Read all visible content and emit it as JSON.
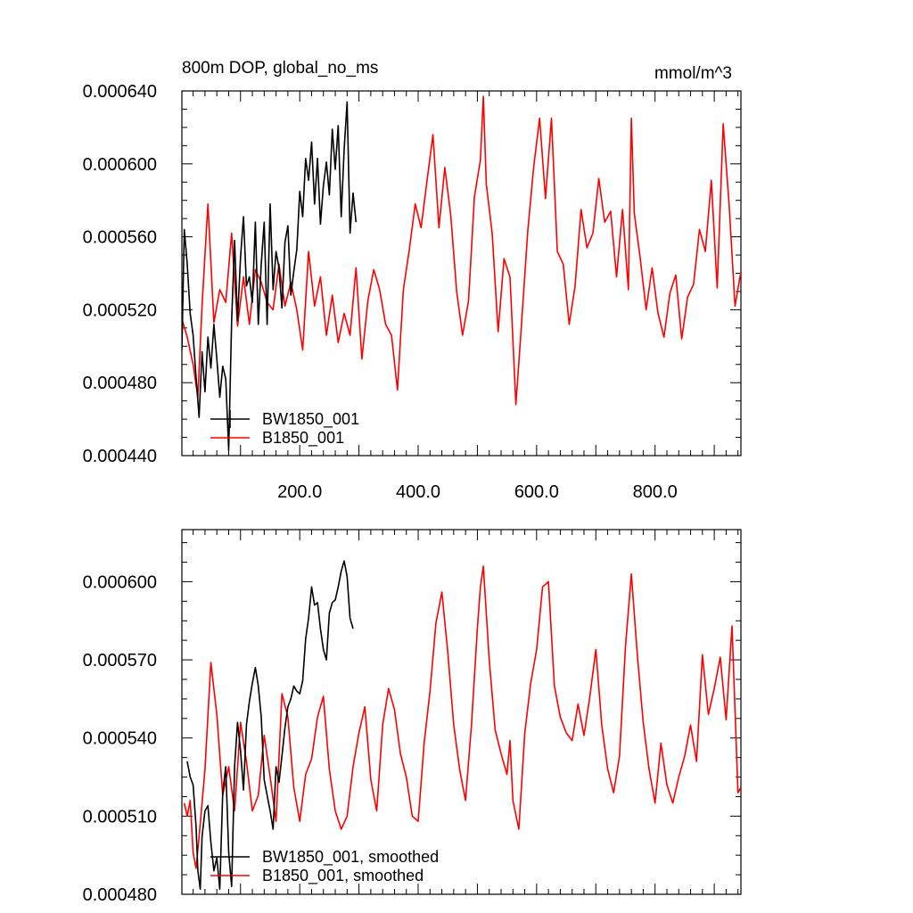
{
  "chart_data": [
    {
      "type": "line",
      "title_left": "800m DOP, global_no_ms",
      "title_right": "mmol/m^3",
      "xlim": [
        1,
        945
      ],
      "ylim": [
        0.00044,
        0.00064
      ],
      "grid": false,
      "legend_position": "bottom-left",
      "xticks": [
        200,
        400,
        600,
        800
      ],
      "xtick_labels": [
        "200.0",
        "400.0",
        "600.0",
        "800.0"
      ],
      "yticks": [
        0.00044,
        0.00048,
        0.00052,
        0.00056,
        0.0006,
        0.00064
      ],
      "ytick_labels": [
        "0.000440",
        "0.000480",
        "0.000520",
        "0.000560",
        "0.000600",
        "0.000640"
      ],
      "series": [
        {
          "name": "BW1850_001",
          "color": "#000000",
          "x": [
            1,
            5,
            10,
            15,
            20,
            25,
            30,
            35,
            40,
            45,
            50,
            55,
            60,
            65,
            70,
            75,
            80,
            85,
            90,
            95,
            100,
            105,
            110,
            115,
            120,
            125,
            130,
            135,
            140,
            145,
            150,
            155,
            160,
            165,
            170,
            175,
            180,
            185,
            190,
            195,
            200,
            205,
            210,
            215,
            220,
            225,
            230,
            235,
            240,
            245,
            250,
            255,
            260,
            265,
            270,
            275,
            280,
            285,
            290,
            295
          ],
          "y": [
            0.000498,
            0.000564,
            0.000545,
            0.000518,
            0.000506,
            0.000483,
            0.000461,
            0.000497,
            0.000475,
            0.000505,
            0.000488,
            0.000512,
            0.000493,
            0.000472,
            0.000489,
            0.000482,
            0.000443,
            0.000514,
            0.000558,
            0.000514,
            0.000549,
            0.000571,
            0.000533,
            0.000538,
            0.000524,
            0.000568,
            0.000512,
            0.000545,
            0.000568,
            0.000512,
            0.000578,
            0.000531,
            0.000552,
            0.000543,
            0.000521,
            0.000557,
            0.000566,
            0.000528,
            0.000541,
            0.000553,
            0.000585,
            0.000571,
            0.000603,
            0.000591,
            0.000612,
            0.000578,
            0.000603,
            0.000567,
            0.000588,
            0.000601,
            0.000583,
            0.000619,
            0.000597,
            0.000621,
            0.000571,
            0.000608,
            0.000634,
            0.000562,
            0.000584,
            0.000568
          ]
        },
        {
          "name": "B1850_001",
          "color": "#ff0000",
          "x": [
            1,
            10,
            20,
            28,
            35,
            45,
            55,
            65,
            75,
            85,
            95,
            105,
            115,
            125,
            135,
            145,
            155,
            165,
            175,
            185,
            195,
            205,
            215,
            225,
            235,
            245,
            255,
            265,
            275,
            285,
            295,
            305,
            315,
            325,
            335,
            345,
            355,
            365,
            375,
            385,
            395,
            405,
            415,
            425,
            435,
            445,
            455,
            465,
            475,
            485,
            495,
            505,
            510,
            515,
            525,
            535,
            545,
            555,
            565,
            573,
            585,
            595,
            605,
            615,
            625,
            635,
            645,
            655,
            665,
            675,
            685,
            695,
            705,
            715,
            725,
            735,
            745,
            755,
            760,
            765,
            775,
            785,
            795,
            805,
            815,
            825,
            835,
            845,
            855,
            865,
            875,
            885,
            895,
            905,
            915,
            925,
            935,
            945
          ],
          "y": [
            0.000515,
            0.000505,
            0.00049,
            0.000472,
            0.000522,
            0.000578,
            0.000513,
            0.000531,
            0.000524,
            0.000562,
            0.000511,
            0.000538,
            0.000512,
            0.000542,
            0.000535,
            0.000524,
            0.00052,
            0.000545,
            0.000522,
            0.000535,
            0.00052,
            0.000498,
            0.000552,
            0.000522,
            0.000538,
            0.000506,
            0.000528,
            0.000502,
            0.000518,
            0.000506,
            0.000543,
            0.000493,
            0.000525,
            0.000542,
            0.000531,
            0.000512,
            0.000506,
            0.000476,
            0.000531,
            0.000553,
            0.000578,
            0.000565,
            0.000591,
            0.000616,
            0.000565,
            0.000598,
            0.000572,
            0.00053,
            0.000506,
            0.000525,
            0.000582,
            0.000602,
            0.000637,
            0.000589,
            0.000562,
            0.000508,
            0.000548,
            0.000538,
            0.000468,
            0.000505,
            0.000563,
            0.000598,
            0.000625,
            0.000581,
            0.000625,
            0.000552,
            0.000545,
            0.000512,
            0.000533,
            0.000575,
            0.000554,
            0.000562,
            0.000592,
            0.000568,
            0.000574,
            0.000538,
            0.000575,
            0.000531,
            0.000625,
            0.000573,
            0.000548,
            0.00052,
            0.000543,
            0.000518,
            0.000505,
            0.000529,
            0.000539,
            0.000504,
            0.000527,
            0.000534,
            0.000564,
            0.000552,
            0.000591,
            0.000532,
            0.000622,
            0.000578,
            0.000522,
            0.000541
          ]
        }
      ]
    },
    {
      "type": "line",
      "xlim": [
        1,
        945
      ],
      "ylim": [
        0.00048,
        0.00062
      ],
      "grid": false,
      "legend_position": "bottom-left",
      "xticks": [
        200,
        400,
        600,
        800
      ],
      "yticks": [
        0.00048,
        0.00051,
        0.00054,
        0.00057,
        0.0006
      ],
      "ytick_labels": [
        "0.000480",
        "0.000510",
        "0.000540",
        "0.000570",
        "0.000600"
      ],
      "series": [
        {
          "name": "BW1850_001, smoothed",
          "color": "#000000",
          "x": [
            10,
            15,
            20,
            25,
            28,
            32,
            35,
            40,
            45,
            50,
            55,
            60,
            65,
            70,
            75,
            80,
            85,
            90,
            95,
            100,
            105,
            110,
            115,
            120,
            125,
            130,
            135,
            140,
            145,
            150,
            155,
            160,
            165,
            170,
            175,
            180,
            185,
            190,
            195,
            200,
            205,
            210,
            215,
            220,
            225,
            230,
            235,
            240,
            245,
            250,
            255,
            260,
            265,
            270,
            275,
            280,
            285,
            290
          ],
          "y": [
            0.000531,
            0.000525,
            0.000522,
            0.000506,
            0.000489,
            0.000482,
            0.000502,
            0.000512,
            0.000514,
            0.0005,
            0.000489,
            0.000494,
            0.000482,
            0.000519,
            0.000529,
            0.000496,
            0.000483,
            0.000529,
            0.000546,
            0.000535,
            0.00052,
            0.000545,
            0.000554,
            0.000561,
            0.000567,
            0.00056,
            0.000548,
            0.000524,
            0.000518,
            0.000512,
            0.000505,
            0.000529,
            0.000523,
            0.000533,
            0.000544,
            0.000552,
            0.000555,
            0.00056,
            0.000558,
            0.000557,
            0.000562,
            0.000578,
            0.000586,
            0.000598,
            0.000591,
            0.000592,
            0.000582,
            0.000574,
            0.00057,
            0.000588,
            0.000592,
            0.000593,
            0.000598,
            0.000604,
            0.000608,
            0.000602,
            0.000586,
            0.000582
          ]
        },
        {
          "name": "B1850_001, smoothed",
          "color": "#ff0000",
          "x": [
            5,
            10,
            15,
            20,
            25,
            30,
            40,
            50,
            60,
            70,
            80,
            90,
            100,
            110,
            120,
            130,
            140,
            150,
            160,
            170,
            180,
            190,
            200,
            210,
            220,
            230,
            240,
            250,
            260,
            270,
            280,
            290,
            300,
            310,
            320,
            330,
            340,
            350,
            360,
            370,
            380,
            390,
            400,
            410,
            420,
            430,
            440,
            450,
            460,
            470,
            480,
            490,
            500,
            505,
            510,
            520,
            530,
            540,
            550,
            555,
            560,
            570,
            580,
            590,
            600,
            610,
            620,
            630,
            640,
            650,
            660,
            670,
            680,
            690,
            700,
            710,
            720,
            730,
            740,
            750,
            760,
            770,
            780,
            790,
            800,
            810,
            820,
            830,
            840,
            850,
            860,
            870,
            880,
            890,
            900,
            910,
            920,
            930,
            940,
            945
          ],
          "y": [
            0.000515,
            0.00051,
            0.000516,
            0.000496,
            0.00049,
            0.000502,
            0.000528,
            0.000569,
            0.000549,
            0.000518,
            0.000529,
            0.000512,
            0.000546,
            0.000531,
            0.000512,
            0.000518,
            0.000541,
            0.000525,
            0.000508,
            0.000557,
            0.000548,
            0.000521,
            0.000508,
            0.000526,
            0.000532,
            0.000548,
            0.000556,
            0.000528,
            0.000512,
            0.000505,
            0.00051,
            0.000529,
            0.000542,
            0.000552,
            0.000524,
            0.000512,
            0.000545,
            0.000559,
            0.000551,
            0.000534,
            0.000525,
            0.00051,
            0.000508,
            0.000538,
            0.000558,
            0.000584,
            0.000596,
            0.000573,
            0.000545,
            0.000528,
            0.000516,
            0.000545,
            0.000582,
            0.000598,
            0.000606,
            0.00057,
            0.000543,
            0.000534,
            0.000526,
            0.000539,
            0.000516,
            0.000505,
            0.000542,
            0.000561,
            0.000574,
            0.000598,
            0.0006,
            0.00056,
            0.000548,
            0.000542,
            0.000539,
            0.000553,
            0.000541,
            0.000556,
            0.000574,
            0.000545,
            0.000528,
            0.000519,
            0.000533,
            0.000575,
            0.000603,
            0.000572,
            0.000546,
            0.000528,
            0.000515,
            0.000538,
            0.000522,
            0.000515,
            0.000525,
            0.000533,
            0.000545,
            0.000531,
            0.000572,
            0.000549,
            0.000559,
            0.000571,
            0.000547,
            0.000583,
            0.000519,
            0.000521
          ]
        }
      ]
    }
  ]
}
